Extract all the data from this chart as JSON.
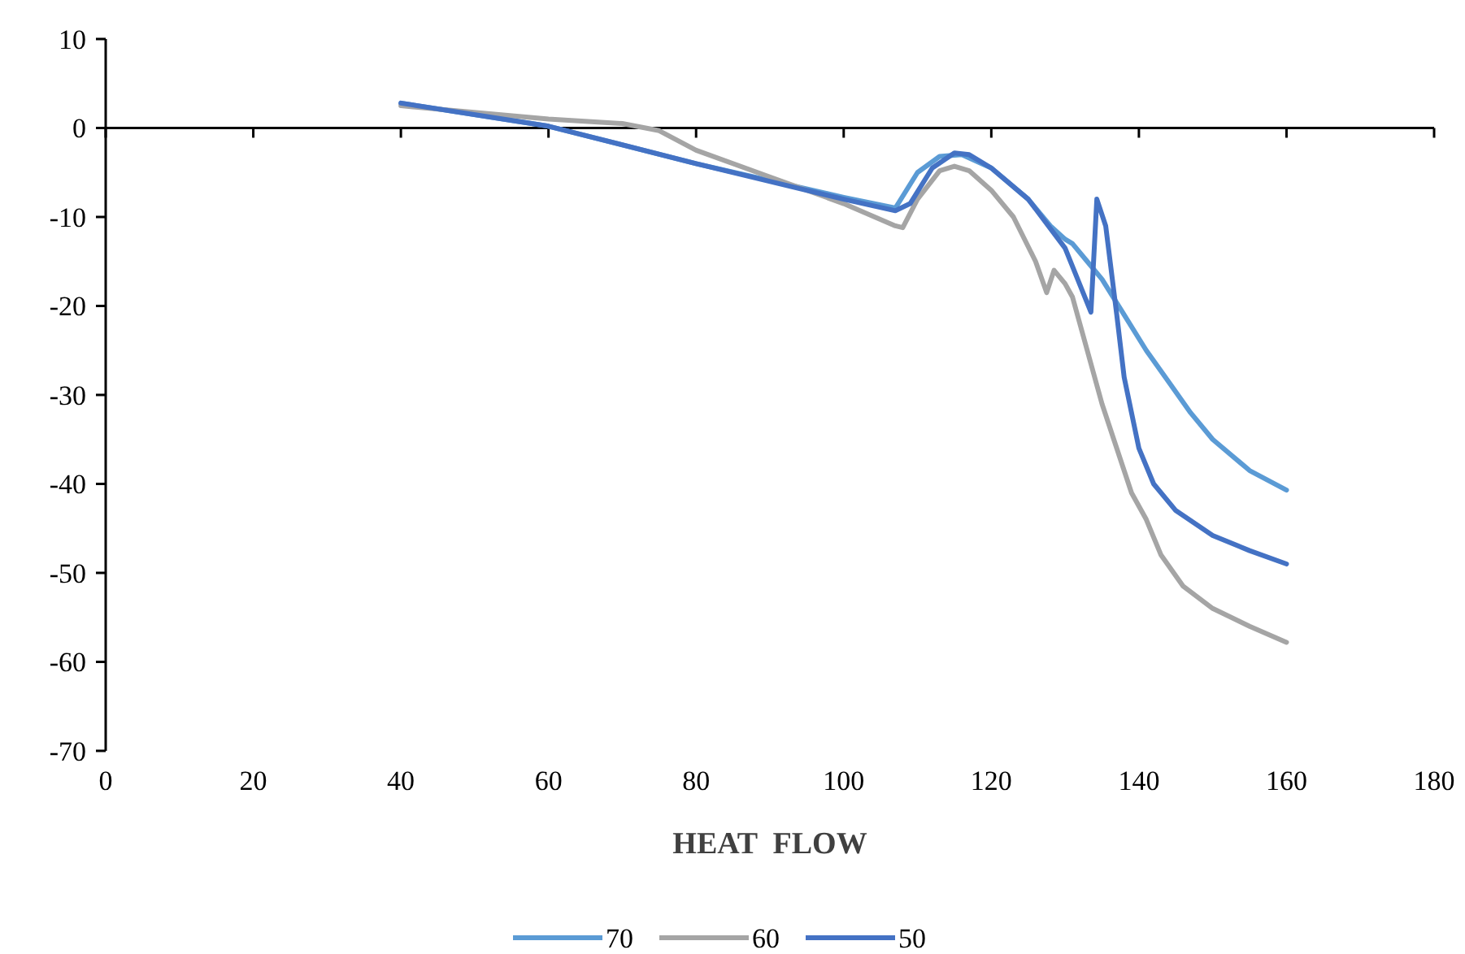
{
  "chart_data": {
    "type": "line",
    "xlabel": "HEAT  FLOW",
    "xlim": [
      0,
      180
    ],
    "xticks": [
      0,
      20,
      40,
      60,
      80,
      100,
      120,
      140,
      160,
      180
    ],
    "ylim": [
      -70,
      10
    ],
    "yticks": [
      -70,
      -60,
      -50,
      -40,
      -30,
      -20,
      -10,
      0,
      10
    ],
    "legend": "bottom",
    "marker": "none",
    "line_style": "solid",
    "series": [
      {
        "name": "70",
        "color": "#5b9bd5",
        "x": [
          40,
          60,
          80,
          100,
          107,
          110,
          113,
          116,
          120,
          125,
          128,
          130,
          131,
          133,
          135,
          138,
          141,
          144,
          147,
          150,
          155,
          160
        ],
        "values": [
          2.8,
          0.2,
          -4,
          -7.8,
          -9,
          -5,
          -3.2,
          -3,
          -4.5,
          -8,
          -11,
          -12.5,
          -13,
          -15,
          -17,
          -21,
          -25,
          -28.5,
          -32,
          -35,
          -38.5,
          -40.7
        ]
      },
      {
        "name": "60",
        "color": "#a5a5a5",
        "x": [
          40,
          60,
          70,
          75,
          80,
          90,
          100,
          107,
          108,
          110,
          113,
          115,
          117,
          120,
          123,
          126,
          127.5,
          128.5,
          130,
          131,
          133,
          135,
          137,
          139,
          141,
          143,
          146,
          150,
          155,
          160
        ],
        "values": [
          2.5,
          1,
          0.5,
          -0.3,
          -2.5,
          -5.5,
          -8.5,
          -11,
          -11.2,
          -8,
          -4.8,
          -4.3,
          -4.8,
          -7,
          -10,
          -15,
          -18.5,
          -16,
          -17.5,
          -19,
          -25,
          -31,
          -36,
          -41,
          -44,
          -48,
          -51.5,
          -54,
          -56,
          -57.8
        ]
      },
      {
        "name": "50",
        "color": "#4472c4",
        "x": [
          40,
          60,
          80,
          100,
          107,
          109,
          112,
          115,
          117,
          120,
          125,
          130,
          133.5,
          134.3,
          135.5,
          137,
          138,
          140,
          142,
          145,
          150,
          155,
          160
        ],
        "values": [
          2.8,
          0.2,
          -4,
          -8,
          -9.3,
          -8.5,
          -4.5,
          -2.8,
          -3,
          -4.5,
          -8,
          -13.5,
          -20.7,
          -8,
          -11,
          -21,
          -28,
          -36,
          -40,
          -43,
          -45.8,
          -47.5,
          -49
        ]
      }
    ]
  }
}
